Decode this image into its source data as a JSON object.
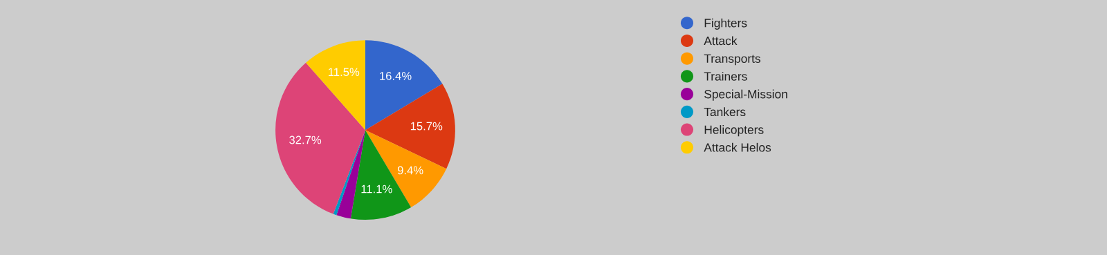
{
  "chart_data": {
    "type": "pie",
    "categories": [
      "Fighters",
      "Attack",
      "Transports",
      "Trainers",
      "Special-Mission",
      "Tankers",
      "Helicopters",
      "Attack Helos"
    ],
    "values": [
      16.4,
      15.7,
      9.4,
      11.1,
      2.6,
      0.6,
      32.7,
      11.5
    ],
    "value_labels": [
      "16.4%",
      "15.7%",
      "9.4%",
      "11.1%",
      null,
      null,
      "32.7%",
      "11.5%"
    ],
    "colors": [
      "#3366cc",
      "#dc3912",
      "#ff9900",
      "#109618",
      "#990099",
      "#0099c6",
      "#dd4477",
      "#ffcc00"
    ],
    "legend": "right"
  }
}
